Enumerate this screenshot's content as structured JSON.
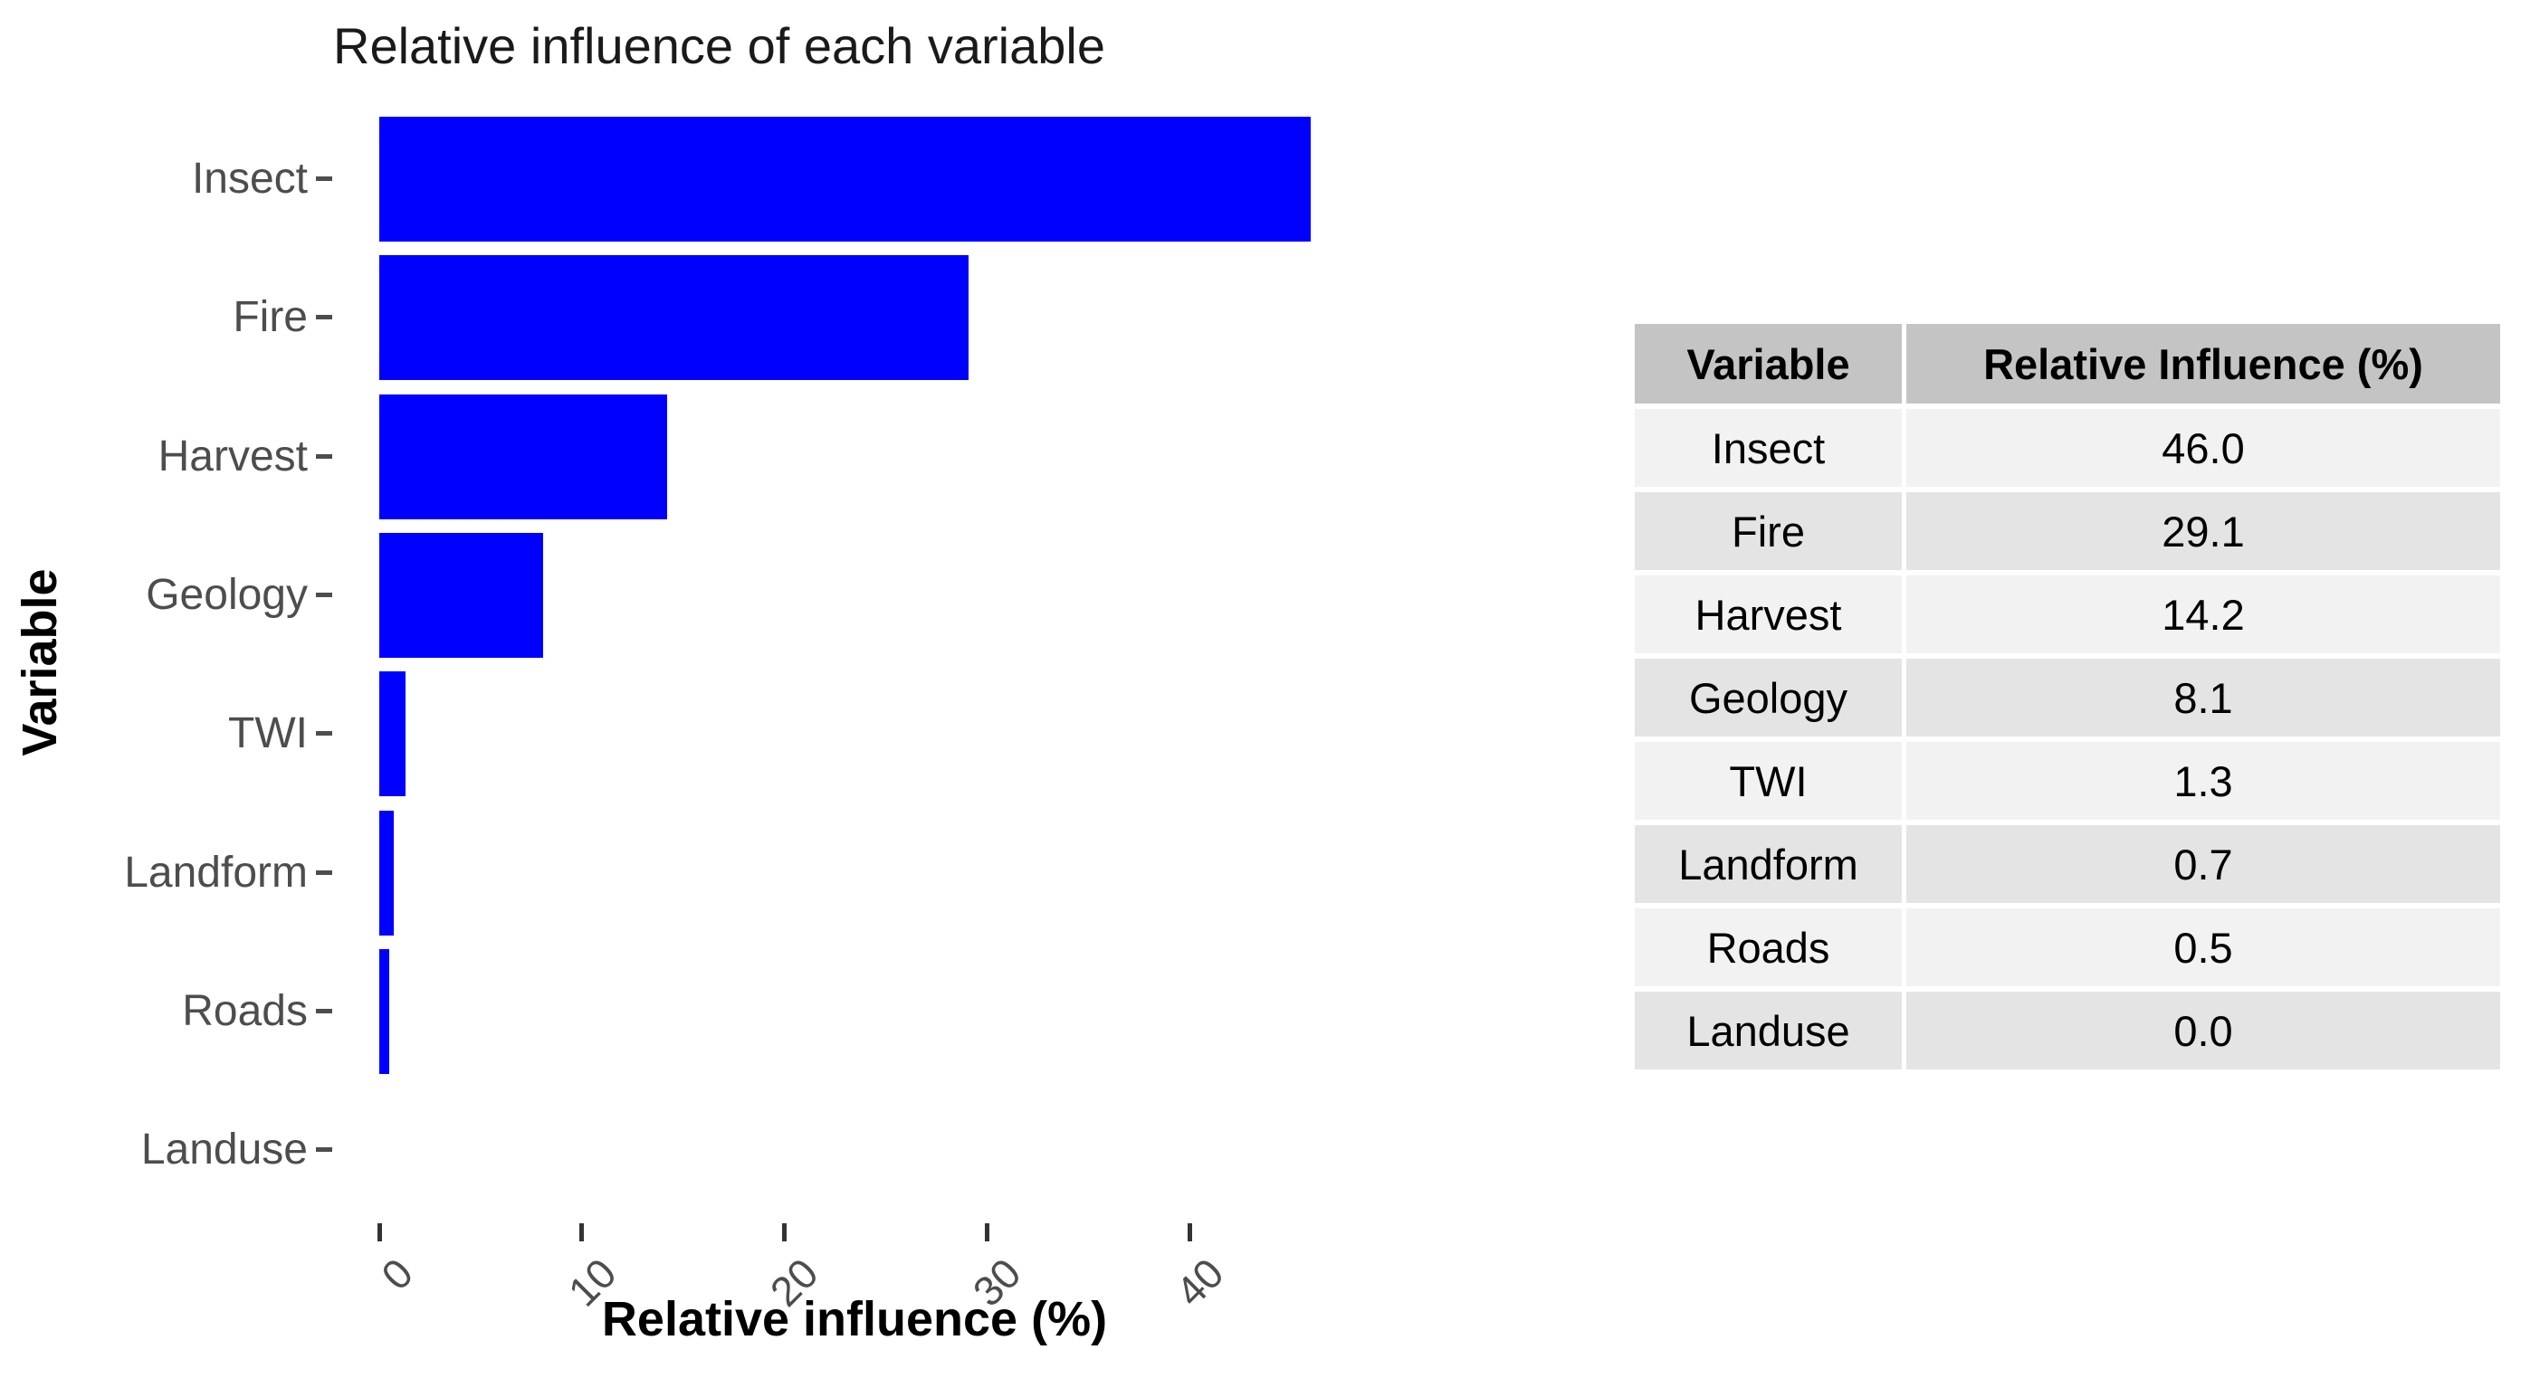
{
  "chart_data": {
    "type": "bar",
    "orientation": "horizontal",
    "title": "Relative influence of each variable",
    "xlabel": "Relative influence (%)",
    "ylabel": "Variable",
    "categories": [
      "Insect",
      "Fire",
      "Harvest",
      "Geology",
      "TWI",
      "Landform",
      "Roads",
      "Landuse"
    ],
    "values": [
      46.0,
      29.1,
      14.2,
      8.1,
      1.3,
      0.7,
      0.5,
      0.0
    ],
    "x_ticks": [
      0,
      10,
      20,
      30,
      40
    ],
    "xlim": [
      0,
      48
    ],
    "grid": "off",
    "legend": "none",
    "bar_color": "#0000ff",
    "tick_label_color": "#4d4d4d",
    "tick_mark_color": "#333333"
  },
  "table": {
    "headers": [
      "Variable",
      "Relative Influence (%)"
    ],
    "rows": [
      [
        "Insect",
        "46.0"
      ],
      [
        "Fire",
        "29.1"
      ],
      [
        "Harvest",
        "14.2"
      ],
      [
        "Geology",
        "8.1"
      ],
      [
        "TWI",
        "1.3"
      ],
      [
        "Landform",
        "0.7"
      ],
      [
        "Roads",
        "0.5"
      ],
      [
        "Landuse",
        "0.0"
      ]
    ],
    "header_bg": "#c4c4c4",
    "row_bg_light": "#f2f2f2",
    "row_bg_dark": "#e4e4e4"
  }
}
